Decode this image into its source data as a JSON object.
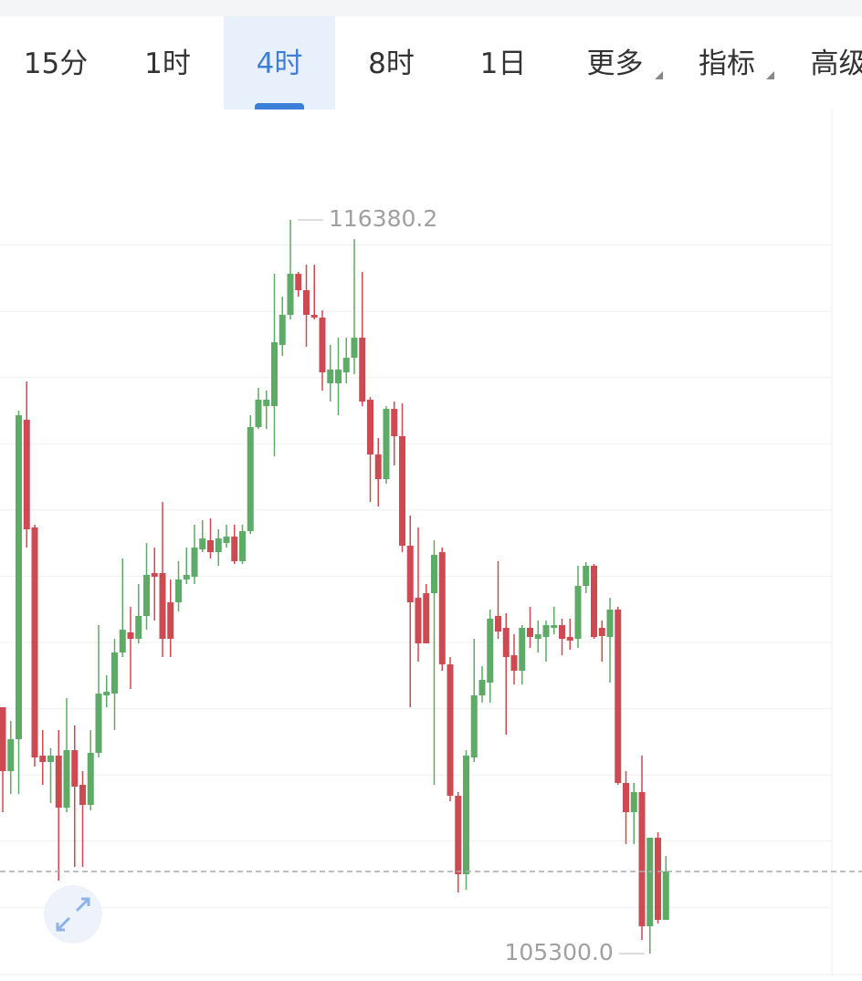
{
  "toolbar": {
    "tabs": [
      "15分",
      "1时",
      "4时",
      "8时",
      "1日",
      "更多",
      "指标",
      "高级"
    ],
    "active": 2,
    "dropdowns": [
      5,
      6
    ]
  },
  "chart_data": {
    "type": "candlestick",
    "up_color": "#5dab67",
    "down_color": "#cd4a52",
    "grid": true,
    "ylim": [
      104983,
      118048
    ],
    "yticks": [
      106000,
      107000,
      108000,
      109000,
      110000,
      111000,
      112000,
      113000,
      114000,
      115000,
      116000
    ],
    "annotations": [
      {
        "value": 116380.2,
        "label": "116380.2"
      },
      {
        "value": 105300,
        "label": "105300.0"
      }
    ],
    "open": [
      109021,
      108056,
      108538,
      113362,
      111736,
      108290,
      108194,
      108290,
      107505,
      108373,
      107849,
      107546,
      108332,
      109200,
      109227,
      109848,
      110151,
      110054,
      110399,
      111047,
      111047,
      110606,
      110606,
      110950,
      110991,
      111405,
      111543,
      111363,
      111501,
      111598,
      111226,
      111680,
      113251,
      113568,
      113568,
      114492,
      114947,
      115567,
      115319,
      114947,
      114905,
      113913,
      113913,
      114078,
      114299,
      114602,
      113665,
      112838,
      112466,
      113527,
      113114,
      111460,
      110674,
      110743,
      110743,
      111363,
      109668,
      107684,
      106499,
      108263,
      109200,
      109393,
      110399,
      110220,
      109806,
      109572,
      110220,
      110054,
      110082,
      110220,
      110261,
      110082,
      110054,
      110854,
      111157,
      110220,
      110082,
      110495,
      107877,
      107436,
      107739,
      105713,
      107050,
      105810
    ],
    "high": [
      109021,
      108814,
      113500,
      113941,
      111777,
      108676,
      108401,
      108676,
      109159,
      108745,
      108056,
      108676,
      110261,
      109503,
      110054,
      111267,
      110537,
      110881,
      111501,
      111432,
      112121,
      110950,
      111226,
      111432,
      111777,
      111846,
      111873,
      111708,
      111777,
      111777,
      111777,
      113431,
      113844,
      113803,
      115567,
      115222,
      116380.2,
      115594,
      115705,
      115705,
      115015,
      114492,
      114602,
      114602,
      116090,
      115594,
      113706,
      113086,
      113568,
      113637,
      113610,
      111915,
      111736,
      110881,
      111543,
      111432,
      109779,
      107739,
      108373,
      110054,
      109641,
      110495,
      111226,
      110440,
      110123,
      110261,
      110537,
      110330,
      110330,
      110537,
      110358,
      110358,
      111157,
      111212,
      111184,
      110330,
      110674,
      110537,
      108056,
      107877,
      108290,
      107050,
      107133,
      106774
    ],
    "low": [
      107436,
      107712,
      107712,
      111432,
      108125,
      107849,
      107574,
      106402,
      107436,
      106609,
      106609,
      107464,
      108263,
      109021,
      108676,
      109779,
      109296,
      109985,
      110192,
      110330,
      109779,
      109779,
      110468,
      110881,
      110881,
      111363,
      111267,
      111157,
      111432,
      111184,
      111184,
      111639,
      113224,
      113224,
      112810,
      114326,
      114878,
      115222,
      114464,
      114878,
      113803,
      113637,
      113431,
      113913,
      114051,
      113568,
      112121,
      112053,
      112397,
      112673,
      111363,
      109021,
      109710,
      109985,
      107849,
      109572,
      107601,
      106223,
      106265,
      108194,
      109090,
      109090,
      110054,
      108607,
      109365,
      109365,
      109916,
      109848,
      109710,
      110123,
      109806,
      109889,
      109916,
      110743,
      110054,
      109710,
      109393,
      107849,
      106954,
      106954,
      105507,
      105300,
      105755,
      105810
    ],
    "close": [
      108056,
      108538,
      113431,
      111708,
      108263,
      108194,
      108290,
      107505,
      108373,
      107822,
      107546,
      108332,
      109227,
      109255,
      109848,
      110192,
      110054,
      110399,
      111019,
      110991,
      110054,
      110054,
      110950,
      111019,
      111432,
      111570,
      111363,
      111570,
      111598,
      111226,
      111680,
      113251,
      113665,
      113665,
      114533,
      114947,
      115567,
      115319,
      114947,
      114905,
      114078,
      114120,
      114120,
      114299,
      114602,
      113637,
      112838,
      112466,
      113527,
      113114,
      111460,
      110606,
      109985,
      109985,
      111322,
      109668,
      107684,
      106499,
      108290,
      109200,
      109434,
      110358,
      110165,
      109779,
      109572,
      110220,
      110082,
      110123,
      110261,
      110261,
      110054,
      110027,
      110854,
      111157,
      110082,
      110096,
      110495,
      107877,
      107436,
      107739,
      105713,
      107050,
      105810,
      106540
    ]
  }
}
